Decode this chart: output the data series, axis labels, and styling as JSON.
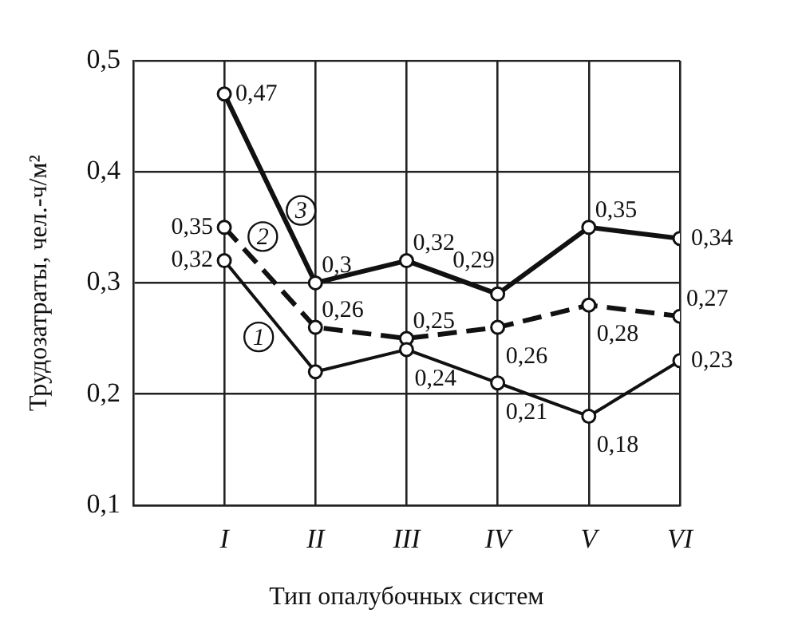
{
  "chart_data": {
    "type": "line",
    "xlabel": "Тип опалубочных систем",
    "ylabel": "Трудозатраты, чел.-ч/м²",
    "categories": [
      "I",
      "II",
      "III",
      "IV",
      "V",
      "VI"
    ],
    "series": [
      {
        "name": "1",
        "color": "#111111",
        "line_style": "solid",
        "values": [
          0.32,
          0.22,
          0.24,
          0.21,
          0.18,
          0.23
        ],
        "value_labels": [
          "0,32",
          null,
          "0,24",
          "0,21",
          "0,18",
          "0,23"
        ]
      },
      {
        "name": "2",
        "color": "#111111",
        "line_style": "dashed",
        "values": [
          0.35,
          0.26,
          0.25,
          0.26,
          0.28,
          0.27
        ],
        "value_labels": [
          "0,35",
          "0,26",
          "0,25",
          "0,26",
          "0,28",
          "0,27"
        ]
      },
      {
        "name": "3",
        "color": "#111111",
        "line_style": "solid",
        "values": [
          0.47,
          0.3,
          0.32,
          0.29,
          0.35,
          0.34
        ],
        "value_labels": [
          "0,47",
          "0,3",
          "0,32",
          "0,29",
          "0,35",
          "0,34"
        ]
      }
    ],
    "ylim": [
      0.1,
      0.5
    ],
    "yticks": [
      {
        "value": 0.1,
        "label": "0,1"
      },
      {
        "value": 0.2,
        "label": "0,2"
      },
      {
        "value": 0.3,
        "label": "0,3"
      },
      {
        "value": 0.4,
        "label": "0,4"
      },
      {
        "value": 0.5,
        "label": "0,5"
      }
    ],
    "grid": true,
    "marker": "circle"
  }
}
